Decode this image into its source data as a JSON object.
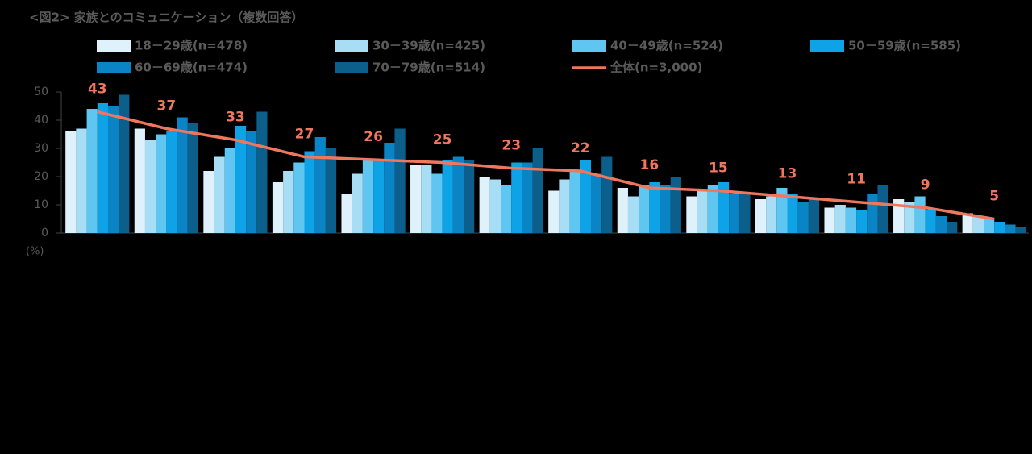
{
  "chart_data": {
    "type": "bar",
    "title": "<図2> 家族とのコミュニケーション（複数回答）",
    "y_unit": "(%)",
    "categories": [
      null,
      null,
      null,
      null,
      null,
      null,
      null,
      null,
      null,
      null,
      null,
      null,
      null,
      null
    ],
    "ylim": [
      0,
      50
    ],
    "yticks": [
      0,
      10,
      20,
      30,
      40,
      50
    ],
    "grid": false,
    "legend": "top",
    "series": [
      {
        "name": "18－29歳(n=478)",
        "color": "#dff2fb",
        "values": [
          36,
          37,
          22,
          18,
          14,
          24,
          20,
          15,
          16,
          13,
          12,
          9,
          12,
          7
        ]
      },
      {
        "name": "30－39歳(n=425)",
        "color": "#a8def5",
        "values": [
          37,
          33,
          27,
          22,
          21,
          24,
          19,
          19,
          13,
          15,
          13,
          10,
          11,
          6
        ]
      },
      {
        "name": "40－49歳(n=524)",
        "color": "#5ec6f0",
        "values": [
          44,
          35,
          30,
          25,
          26,
          21,
          17,
          22,
          17,
          17,
          16,
          9,
          13,
          5
        ]
      },
      {
        "name": "50－59歳(n=585)",
        "color": "#0ea2e6",
        "values": [
          46,
          36,
          38,
          29,
          26,
          26,
          25,
          26,
          18,
          18,
          14,
          8,
          8,
          4
        ]
      },
      {
        "name": "60－69歳(n=474)",
        "color": "#0a84c4",
        "values": [
          45,
          41,
          36,
          34,
          32,
          27,
          25,
          21,
          17,
          14,
          11,
          14,
          6,
          3
        ]
      },
      {
        "name": "70－79歳(n=514)",
        "color": "#0b5f8a",
        "values": [
          49,
          39,
          43,
          30,
          37,
          26,
          30,
          27,
          20,
          14,
          12,
          17,
          4,
          2
        ]
      },
      {
        "name": "全体(n=3,000)",
        "color": "#f0765e",
        "type": "line",
        "values": [
          43,
          37,
          33,
          27,
          26,
          25,
          23,
          22,
          16,
          15,
          13,
          11,
          9,
          5
        ]
      }
    ]
  }
}
